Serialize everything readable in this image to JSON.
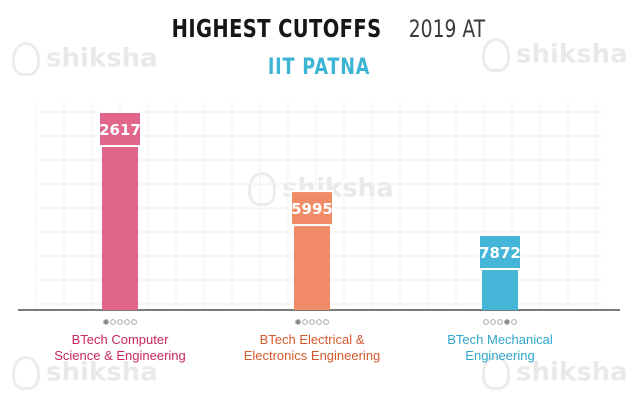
{
  "brand": {
    "watermark": "shiksha"
  },
  "header": {
    "title": "HIGHEST CUTOFFS",
    "title_year": "2019 AT",
    "subtitle": "IIT PATNA"
  },
  "chart_data": {
    "type": "bar",
    "title": "HIGHEST CUTOFFS 2019 AT IIT PATNA",
    "categories": [
      "BTech Computer Science & Engineering",
      "BTech Electrical & Electronics Engineering",
      "BTech Mechanical Engineering"
    ],
    "category_lines": [
      [
        "BTech Computer",
        "Science & Engineering"
      ],
      [
        "BTech Electrical &",
        "Electronics Engineering"
      ],
      [
        "BTech Mechanical",
        "Engineering"
      ]
    ],
    "values": [
      2617,
      5995,
      7872
    ],
    "value_labels": [
      "2617",
      "5995",
      "7872"
    ],
    "colors": [
      "#e2668c",
      "#f28c68",
      "#45b5d8"
    ],
    "label_colors": [
      "#c9275b",
      "#d2592c",
      "#2fa6cc"
    ],
    "grid": true,
    "legend": "none"
  }
}
